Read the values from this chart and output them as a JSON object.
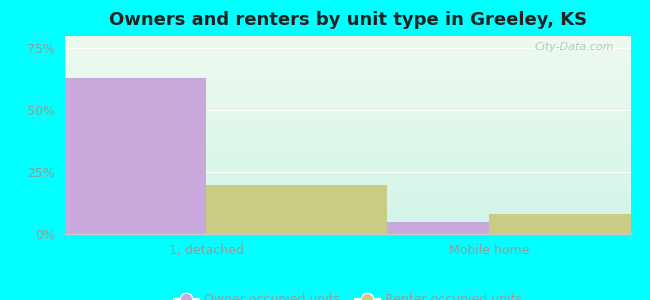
{
  "title": "Owners and renters by unit type in Greeley, KS",
  "categories": [
    "1, detached",
    "Mobile home"
  ],
  "owner_values": [
    63.0,
    5.0
  ],
  "renter_values": [
    20.0,
    8.0
  ],
  "owner_color": "#c9a8dc",
  "renter_color": "#c8cc84",
  "bar_width": 0.32,
  "ylim": [
    0,
    80
  ],
  "yticks": [
    0,
    25,
    50,
    75
  ],
  "ytick_labels": [
    "0%",
    "25%",
    "50%",
    "75%"
  ],
  "legend_owner": "Owner occupied units",
  "legend_renter": "Renter occupied units",
  "bg_top_color": "#edfaed",
  "bg_bottom_color": "#d0f5e8",
  "outer_bg": "#00ffff",
  "watermark": "City-Data.com",
  "x_positions": [
    0.25,
    0.75
  ],
  "xlim": [
    0,
    1.0
  ]
}
